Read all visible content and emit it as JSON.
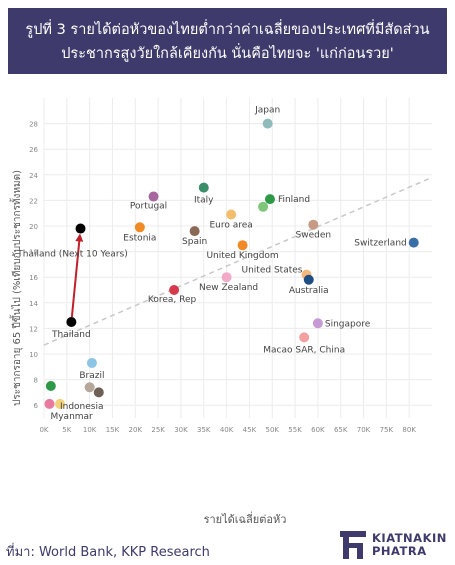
{
  "header": {
    "title_line1": "รูปที่ 3 รายได้ต่อหัวของไทยต่ำกว่าค่าเฉลี่ยของประเทศที่มีสัดส่วน",
    "title_line2": "ประชากรสูงวัยใกล้เคียงกัน นั่นคือไทยจะ 'แก่ก่อนรวย'"
  },
  "footer": {
    "source": "ที่มา: World Bank, KKP Research",
    "brand_line1": "KIATNAKIN",
    "brand_line2": "PHATRA"
  },
  "colors": {
    "title_bg": "#3e3a6b",
    "arrow": "#c0202a",
    "trendline": "#c8c8c8"
  },
  "chart_data": {
    "type": "scatter",
    "xlabel": "รายได้เฉลี่ยต่อหัว",
    "ylabel": "ประชากรอายุ 65 ปีขึ้นไป (%เทียบกับประชากรทั้งหมด)",
    "xlim": [
      0,
      85000
    ],
    "ylim": [
      5,
      30
    ],
    "x_ticks": [
      0,
      5000,
      10000,
      15000,
      20000,
      25000,
      30000,
      35000,
      40000,
      45000,
      50000,
      55000,
      60000,
      65000,
      70000,
      75000,
      80000
    ],
    "x_tick_labels": [
      "0K",
      "5K",
      "10K",
      "15K",
      "20K",
      "25K",
      "30K",
      "35K",
      "40K",
      "45K",
      "50K",
      "55K",
      "60K",
      "65K",
      "70K",
      "75K",
      "80K"
    ],
    "y_ticks": [
      6,
      8,
      10,
      12,
      14,
      16,
      18,
      20,
      22,
      24,
      26,
      28
    ],
    "grid": true,
    "trendline": {
      "x": [
        0,
        85000
      ],
      "y": [
        10.7,
        23.8
      ],
      "style": "dashed"
    },
    "points": [
      {
        "label": "Japan",
        "x": 49000,
        "y": 28.0,
        "color": "#8fbcbb"
      },
      {
        "label": "Italy",
        "x": 35000,
        "y": 23.0,
        "color": "#3a8f6a"
      },
      {
        "label": "Portugal",
        "x": 24000,
        "y": 22.3,
        "color": "#a7679e"
      },
      {
        "label": "Finland",
        "x": 49500,
        "y": 22.1,
        "color": "#2e9a48"
      },
      {
        "label": "",
        "x": 48000,
        "y": 21.5,
        "color": "#7dc67a"
      },
      {
        "label": "Euro area",
        "x": 41000,
        "y": 20.9,
        "color": "#f2be6e"
      },
      {
        "label": "Estonia",
        "x": 21000,
        "y": 19.9,
        "color": "#f08a24"
      },
      {
        "label": "Spain",
        "x": 33000,
        "y": 19.6,
        "color": "#8a6a55"
      },
      {
        "label": "Sweden",
        "x": 59000,
        "y": 20.1,
        "color": "#c79a85"
      },
      {
        "label": "Switzerland",
        "x": 81000,
        "y": 18.7,
        "color": "#3a6ea8"
      },
      {
        "label": "United Kingdom",
        "x": 43500,
        "y": 18.5,
        "color": "#f08a24"
      },
      {
        "label": "Thailand (Next 10 Years)",
        "x": 8000,
        "y": 19.8,
        "color": "#000000"
      },
      {
        "label": "New Zealand",
        "x": 40000,
        "y": 16.0,
        "color": "#f2aac8"
      },
      {
        "label": "United States",
        "x": 57500,
        "y": 16.2,
        "color": "#f5b87a"
      },
      {
        "label": "Australia",
        "x": 58000,
        "y": 15.8,
        "color": "#1f4e85"
      },
      {
        "label": "Korea, Rep",
        "x": 28500,
        "y": 15.0,
        "color": "#d6384c"
      },
      {
        "label": "Thailand",
        "x": 6000,
        "y": 12.5,
        "color": "#000000"
      },
      {
        "label": "Singapore",
        "x": 60000,
        "y": 12.4,
        "color": "#c79ad6"
      },
      {
        "label": "Macao SAR, China",
        "x": 57000,
        "y": 11.3,
        "color": "#f2a0a0"
      },
      {
        "label": "Brazil",
        "x": 10500,
        "y": 9.3,
        "color": "#8cc4e6"
      },
      {
        "label": "",
        "x": 1500,
        "y": 7.5,
        "color": "#2e9a48"
      },
      {
        "label": "",
        "x": 10000,
        "y": 7.4,
        "color": "#b5a79a"
      },
      {
        "label": "",
        "x": 12000,
        "y": 7.0,
        "color": "#6e6055"
      },
      {
        "label": "Indonesia",
        "x": 3500,
        "y": 6.1,
        "color": "#f2d27a"
      },
      {
        "label": "Myanmar",
        "x": 1200,
        "y": 6.1,
        "color": "#e87aa0"
      }
    ],
    "arrow": {
      "from": [
        6000,
        12.5
      ],
      "to": [
        8000,
        19.8
      ]
    }
  }
}
